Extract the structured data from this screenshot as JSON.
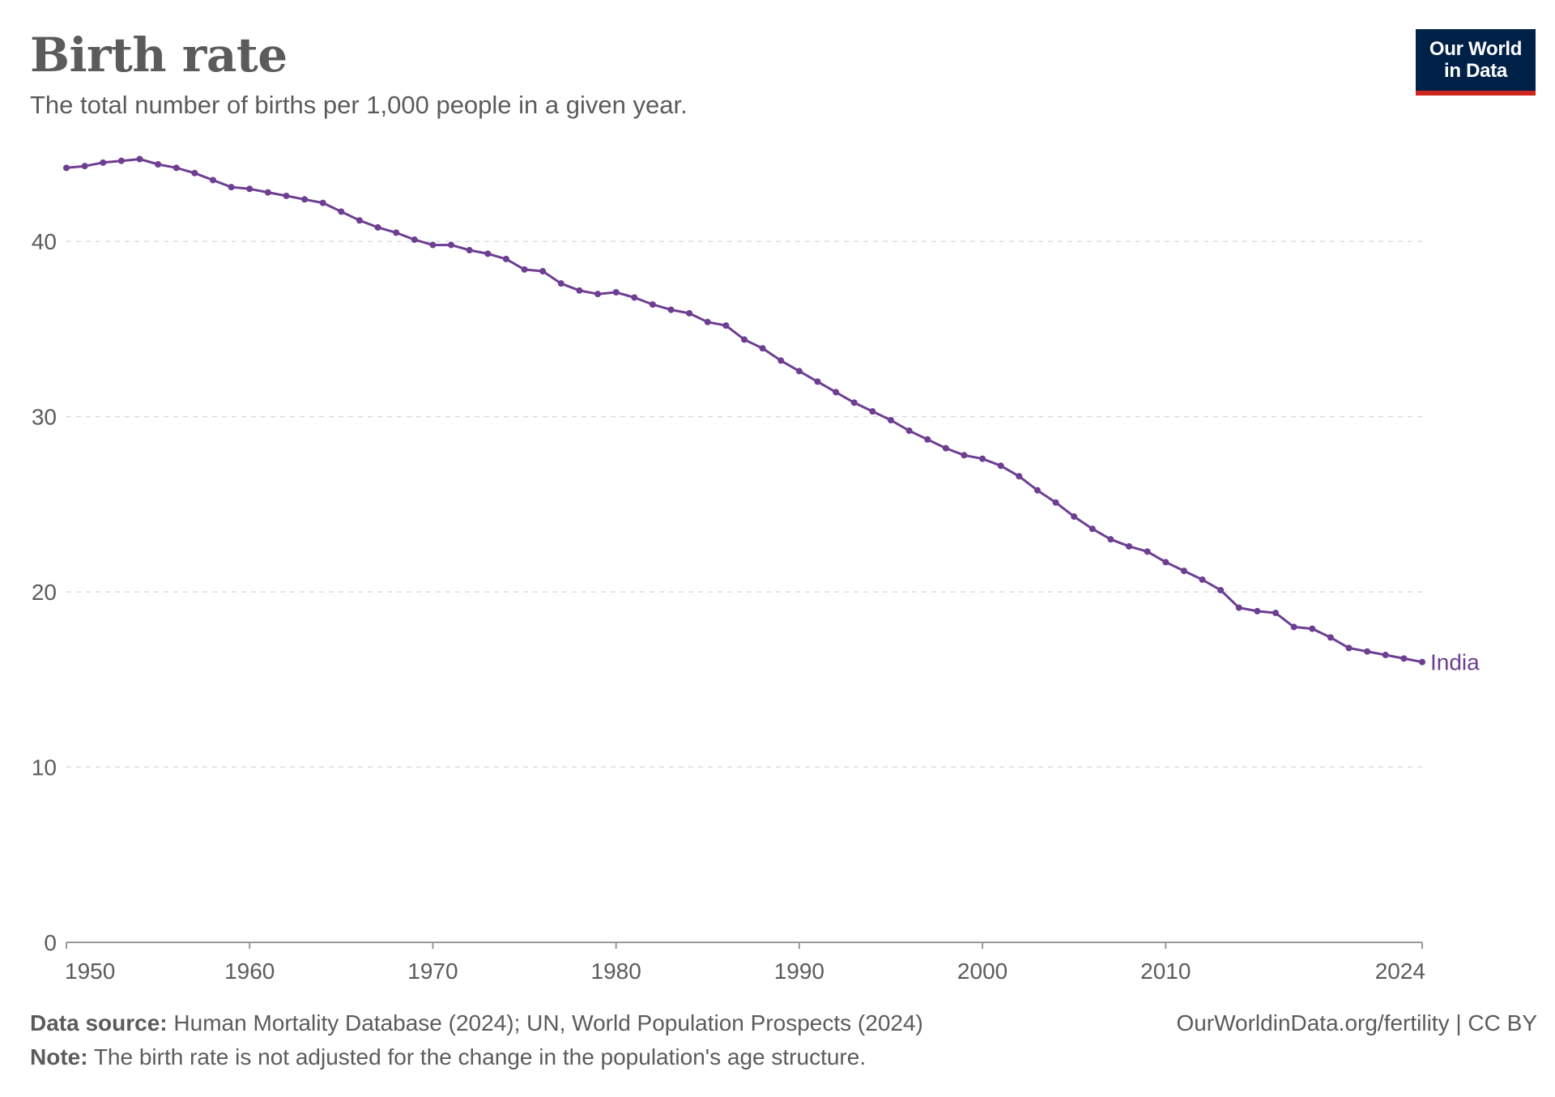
{
  "header": {
    "title": "Birth rate",
    "subtitle": "The total number of births per 1,000 people in a given year."
  },
  "logo": {
    "line1": "Our World",
    "line2": "in Data"
  },
  "footer": {
    "source_label": "Data source:",
    "source_text": " Human Mortality Database (2024); UN, World Population Prospects (2024)",
    "note_label": "Note:",
    "note_text": " The birth rate is not adjusted for the change in the population's age structure.",
    "attribution": "OurWorldinData.org/fertility | CC BY"
  },
  "colors": {
    "line": "#6d3e91",
    "text": "#5b5b5b",
    "grid": "#dddddd",
    "axis": "#999999"
  },
  "chart_data": {
    "type": "line",
    "title": "Birth rate",
    "xlabel": "",
    "ylabel": "",
    "xlim": [
      1950,
      2024
    ],
    "ylim": [
      0,
      45
    ],
    "x_ticks": [
      "1950",
      "1960",
      "1970",
      "1980",
      "1990",
      "2000",
      "2010",
      "2024"
    ],
    "y_ticks": [
      "0",
      "10",
      "20",
      "30",
      "40"
    ],
    "grid": true,
    "series": [
      {
        "name": "India",
        "x": [
          1950,
          1951,
          1952,
          1953,
          1954,
          1955,
          1956,
          1957,
          1958,
          1959,
          1960,
          1961,
          1962,
          1963,
          1964,
          1965,
          1966,
          1967,
          1968,
          1969,
          1970,
          1971,
          1972,
          1973,
          1974,
          1975,
          1976,
          1977,
          1978,
          1979,
          1980,
          1981,
          1982,
          1983,
          1984,
          1985,
          1986,
          1987,
          1988,
          1989,
          1990,
          1991,
          1992,
          1993,
          1994,
          1995,
          1996,
          1997,
          1998,
          1999,
          2000,
          2001,
          2002,
          2003,
          2004,
          2005,
          2006,
          2007,
          2008,
          2009,
          2010,
          2011,
          2012,
          2013,
          2014,
          2015,
          2016,
          2017,
          2018,
          2019,
          2020,
          2021,
          2022,
          2023,
          2024
        ],
        "values": [
          44.2,
          44.3,
          44.5,
          44.6,
          44.7,
          44.4,
          44.2,
          43.9,
          43.5,
          43.1,
          43.0,
          42.8,
          42.6,
          42.4,
          42.2,
          41.7,
          41.2,
          40.8,
          40.5,
          40.1,
          39.8,
          39.8,
          39.5,
          39.3,
          39.0,
          38.4,
          38.3,
          37.6,
          37.2,
          37.0,
          37.1,
          36.8,
          36.4,
          36.1,
          35.9,
          35.4,
          35.2,
          34.4,
          33.9,
          33.2,
          32.6,
          32.0,
          31.4,
          30.8,
          30.3,
          29.8,
          29.2,
          28.7,
          28.2,
          27.8,
          27.6,
          27.2,
          26.6,
          25.8,
          25.1,
          24.3,
          23.6,
          23.0,
          22.6,
          22.3,
          21.7,
          21.2,
          20.7,
          20.1,
          19.1,
          18.9,
          18.8,
          18.0,
          17.9,
          17.4,
          16.8,
          16.6,
          16.4,
          16.2,
          16.0
        ]
      }
    ]
  }
}
